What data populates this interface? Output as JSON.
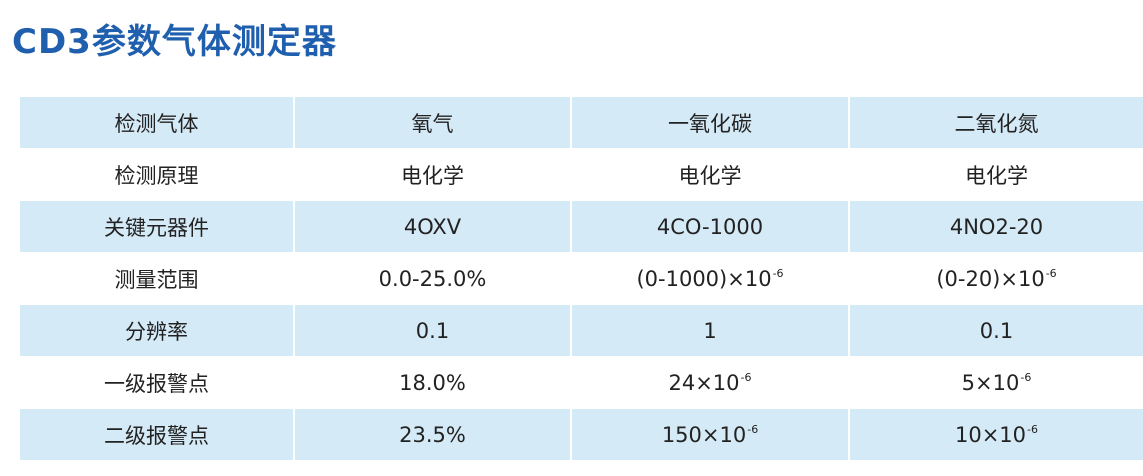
{
  "header": {
    "title": "CD3参数气体测定器"
  },
  "table": {
    "header": [
      "检测气体",
      "氧气",
      "一氧化碳",
      "二氧化氮"
    ],
    "rows": [
      [
        "检测原理",
        "电化学",
        "电化学",
        "电化学"
      ],
      [
        "关键元器件",
        "4OXV",
        "4CO-1000",
        "4NO2-20"
      ],
      [
        "测量范围",
        "0.0-25.0%",
        {
          "text": "(0-1000)×10",
          "sup": "-6"
        },
        {
          "text": "(0-20)×10",
          "sup": "-6"
        }
      ],
      [
        "分辨率",
        "0.1",
        "1",
        "0.1"
      ],
      [
        "一级报警点",
        "18.0%",
        {
          "text": "24×10",
          "sup": "-6"
        },
        {
          "text": "5×10",
          "sup": "-6"
        }
      ],
      [
        "二级报警点",
        "23.5%",
        {
          "text": "150×10",
          "sup": "-6"
        },
        {
          "text": "10×10",
          "sup": "-6"
        }
      ]
    ]
  }
}
